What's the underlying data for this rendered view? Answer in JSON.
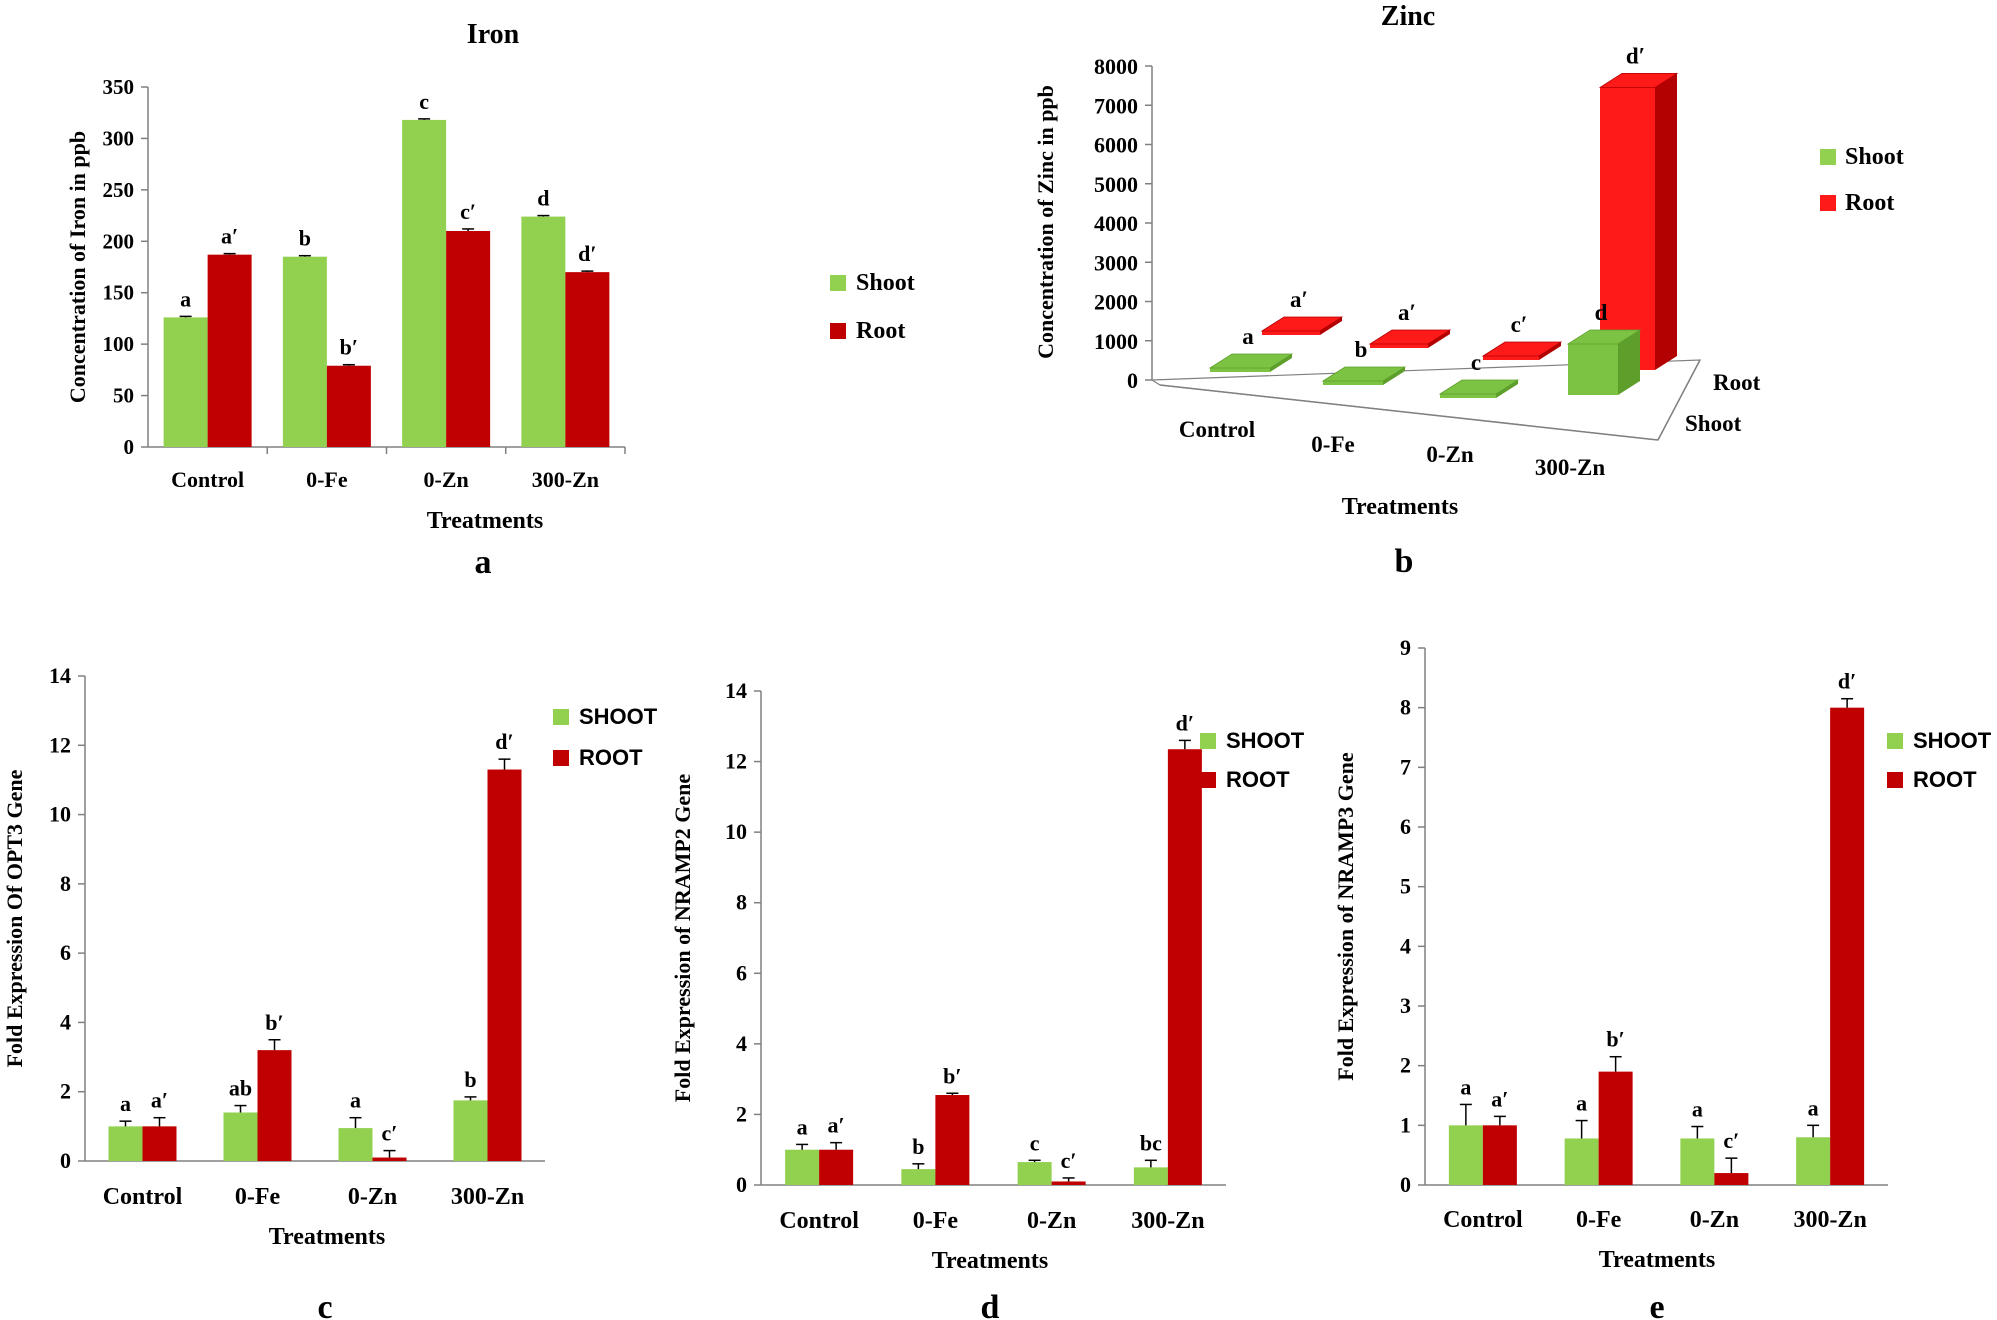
{
  "colors": {
    "shoot": "#92d050",
    "root": "#c00000",
    "zinc_root": "#ff1a1a",
    "zinc_shoot": "#7cc243",
    "axis": "#808080"
  },
  "chart_data": [
    {
      "id": "a",
      "type": "bar",
      "panel_label": "a",
      "title": "Iron",
      "xlabel": "Treatments",
      "ylabel": "Concentration of Iron in ppb",
      "ylim": [
        0,
        350
      ],
      "yticks": [
        0,
        50,
        100,
        150,
        200,
        250,
        300,
        350
      ],
      "categories": [
        "Control",
        "0-Fe",
        "0-Zn",
        "300-Zn"
      ],
      "series": [
        {
          "name": "Shoot",
          "values": [
            126,
            185,
            318,
            224
          ],
          "errors": [
            1,
            1,
            1,
            1
          ],
          "labels": [
            "a",
            "b",
            "c",
            "d"
          ]
        },
        {
          "name": "Root",
          "values": [
            187,
            79,
            210,
            170
          ],
          "errors": [
            1,
            1,
            2,
            1
          ],
          "labels": [
            "a′",
            "b′",
            "c′",
            "d′"
          ]
        }
      ],
      "legend": [
        "Shoot",
        "Root"
      ],
      "legend_position": "right"
    },
    {
      "id": "b",
      "type": "bar",
      "panel_label": "b",
      "title": "Zinc",
      "projection": "3d",
      "xlabel": "Treatments",
      "ylabel": "Concentration of Zinc in ppb",
      "ylim": [
        0,
        8000
      ],
      "yticks": [
        0,
        1000,
        2000,
        3000,
        4000,
        5000,
        6000,
        7000,
        8000
      ],
      "categories": [
        "Control",
        "0-Fe",
        "0-Zn",
        "300-Zn"
      ],
      "depth_labels": [
        "Root",
        "Shoot"
      ],
      "series": [
        {
          "name": "Shoot",
          "values": [
            10,
            10,
            10,
            1300
          ],
          "labels": [
            "a",
            "b",
            "c",
            "d"
          ]
        },
        {
          "name": "Root",
          "values": [
            10,
            10,
            10,
            7200
          ],
          "labels": [
            "a′",
            "a′",
            "c′",
            "d′"
          ]
        }
      ],
      "legend": [
        "Shoot",
        "Root"
      ],
      "legend_position": "top-right"
    },
    {
      "id": "c",
      "type": "bar",
      "panel_label": "c",
      "xlabel": "Treatments",
      "ylabel": "Fold Expression Of OPT3 Gene",
      "ylim": [
        0,
        14
      ],
      "yticks": [
        0,
        2,
        4,
        6,
        8,
        10,
        12,
        14
      ],
      "categories": [
        "Control",
        "0-Fe",
        "0-Zn",
        "300-Zn"
      ],
      "series": [
        {
          "name": "SHOOT",
          "values": [
            1,
            1.4,
            0.95,
            1.75
          ],
          "errors": [
            0.15,
            0.2,
            0.3,
            0.1
          ],
          "labels": [
            "a",
            "ab",
            "a",
            "b"
          ]
        },
        {
          "name": "ROOT",
          "values": [
            1,
            3.2,
            0.1,
            11.3
          ],
          "errors": [
            0.25,
            0.3,
            0.2,
            0.3
          ],
          "labels": [
            "a′",
            "b′",
            "c′",
            "d′"
          ]
        }
      ],
      "legend": [
        "SHOOT",
        "ROOT"
      ],
      "legend_position": "top-right"
    },
    {
      "id": "d",
      "type": "bar",
      "panel_label": "d",
      "xlabel": "Treatments",
      "ylabel": "Fold Expression of NRAMP2 Gene",
      "ylim": [
        0,
        14
      ],
      "yticks": [
        0,
        2,
        4,
        6,
        8,
        10,
        12,
        14
      ],
      "categories": [
        "Control",
        "0-Fe",
        "0-Zn",
        "300-Zn"
      ],
      "series": [
        {
          "name": "SHOOT",
          "values": [
            1,
            0.45,
            0.65,
            0.5
          ],
          "errors": [
            0.15,
            0.15,
            0.05,
            0.2
          ],
          "labels": [
            "a",
            "b",
            "c",
            "bc"
          ]
        },
        {
          "name": "ROOT",
          "values": [
            1,
            2.55,
            0.1,
            12.35
          ],
          "errors": [
            0.2,
            0.05,
            0.1,
            0.25
          ],
          "labels": [
            "a′",
            "b′",
            "c′",
            "d′"
          ]
        }
      ],
      "legend": [
        "SHOOT",
        "ROOT"
      ],
      "legend_position": "top-right"
    },
    {
      "id": "e",
      "type": "bar",
      "panel_label": "e",
      "xlabel": "Treatments",
      "ylabel": "Fold Expression of NRAMP3 Gene",
      "ylim": [
        0,
        9
      ],
      "yticks": [
        0,
        1,
        2,
        3,
        4,
        5,
        6,
        7,
        8,
        9
      ],
      "categories": [
        "Control",
        "0-Fe",
        "0-Zn",
        "300-Zn"
      ],
      "series": [
        {
          "name": "SHOOT",
          "values": [
            1,
            0.78,
            0.78,
            0.8
          ],
          "errors": [
            0.35,
            0.3,
            0.2,
            0.2
          ],
          "labels": [
            "a",
            "a",
            "a",
            "a"
          ]
        },
        {
          "name": "ROOT",
          "values": [
            1,
            1.9,
            0.2,
            8
          ],
          "errors": [
            0.15,
            0.25,
            0.25,
            0.15
          ],
          "labels": [
            "a′",
            "b′",
            "c′",
            "d′"
          ]
        }
      ],
      "legend": [
        "SHOOT",
        "ROOT"
      ],
      "legend_position": "top-right"
    }
  ]
}
